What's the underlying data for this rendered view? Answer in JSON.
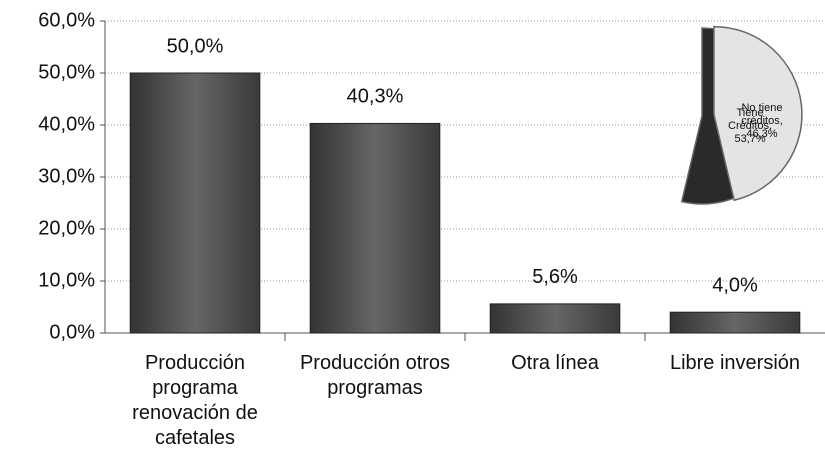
{
  "chart_data": [
    {
      "type": "bar",
      "categories": [
        "Producción programa renovación de cafetales",
        "Producción otros programas",
        "Otra línea",
        "Libre inversión"
      ],
      "values": [
        50.0,
        40.3,
        5.6,
        4.0
      ],
      "value_labels": [
        "50,0%",
        "40,3%",
        "5,6%",
        "4,0%"
      ],
      "color": "#555555",
      "ylim": [
        0,
        60
      ],
      "yticks": [
        {
          "value": 0,
          "label": "0,0%"
        },
        {
          "value": 10,
          "label": "10,0%"
        },
        {
          "value": 20,
          "label": "20,0%"
        },
        {
          "value": 30,
          "label": "30,0%"
        },
        {
          "value": 40,
          "label": "40,0%"
        },
        {
          "value": 50,
          "label": "50,0%"
        },
        {
          "value": 60,
          "label": "60,0%"
        }
      ],
      "grid": true
    },
    {
      "type": "pie",
      "values": [
        46.3,
        53.7
      ],
      "value_labels": [
        "No tiene créditos, 46,3%",
        "Tiene Créditos, 53,7%"
      ],
      "colors": [
        "#e4e4e4",
        "#2a2a2a"
      ]
    }
  ]
}
